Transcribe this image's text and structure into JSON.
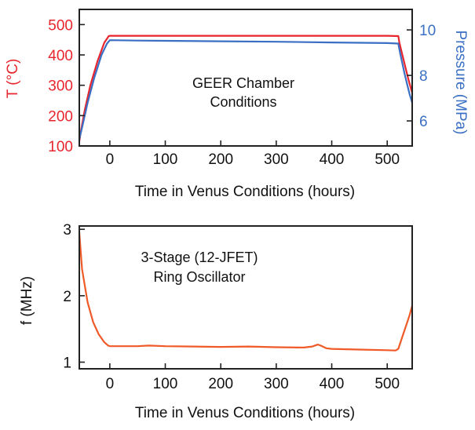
{
  "chart_data": [
    {
      "type": "line",
      "annotation": [
        "GEER Chamber",
        "Conditions"
      ],
      "xlabel": "Time in Venus Conditions (hours)",
      "xlim": [
        -55,
        545
      ],
      "xticks": [
        0,
        100,
        200,
        300,
        400,
        500
      ],
      "ylabel_left": "T (°C)",
      "ylim_left": [
        100,
        550
      ],
      "yticks_left": [
        100,
        200,
        300,
        400,
        500
      ],
      "ylabel_right": "Pressure (MPa)",
      "ylim_right": [
        4.9,
        10.9
      ],
      "yticks_right": [
        6,
        8,
        10
      ],
      "left_color": "#e8242c",
      "right_color": "#3a6fc4",
      "grid": false,
      "series": [
        {
          "axis": "left",
          "color": "#e8242c",
          "points": [
            [
              -55,
              115
            ],
            [
              -52,
              150
            ],
            [
              -45,
              220
            ],
            [
              -35,
              300
            ],
            [
              -22,
              380
            ],
            [
              -10,
              440
            ],
            [
              -2,
              462
            ],
            [
              0,
              463
            ],
            [
              100,
              463
            ],
            [
              200,
              463
            ],
            [
              300,
              463
            ],
            [
              400,
              463
            ],
            [
              500,
              463
            ],
            [
              520,
              462
            ],
            [
              522,
              440
            ],
            [
              530,
              380
            ],
            [
              538,
              320
            ],
            [
              545,
              275
            ]
          ]
        },
        {
          "axis": "right",
          "color": "#3a6fc4",
          "points": [
            [
              -55,
              5.2
            ],
            [
              -50,
              5.7
            ],
            [
              -40,
              6.8
            ],
            [
              -28,
              7.9
            ],
            [
              -15,
              8.9
            ],
            [
              -5,
              9.4
            ],
            [
              0,
              9.55
            ],
            [
              50,
              9.53
            ],
            [
              100,
              9.52
            ],
            [
              200,
              9.5
            ],
            [
              300,
              9.48
            ],
            [
              400,
              9.45
            ],
            [
              500,
              9.42
            ],
            [
              520,
              9.4
            ],
            [
              523,
              9.0
            ],
            [
              532,
              8.0
            ],
            [
              540,
              7.2
            ],
            [
              545,
              6.8
            ]
          ]
        }
      ]
    },
    {
      "type": "line",
      "annotation": [
        "3-Stage (12-JFET)",
        "Ring Oscillator"
      ],
      "xlabel": "Time in Venus Conditions (hours)",
      "xlim": [
        -55,
        545
      ],
      "xticks": [
        0,
        100,
        200,
        300,
        400,
        500
      ],
      "ylabel": "f (MHz)",
      "ylim": [
        0.9,
        3.05
      ],
      "yticks": [
        1,
        2,
        3
      ],
      "grid": false,
      "series": [
        {
          "color": "#f05a28",
          "points": [
            [
              -55,
              2.95
            ],
            [
              -50,
              2.4
            ],
            [
              -40,
              1.9
            ],
            [
              -30,
              1.6
            ],
            [
              -20,
              1.42
            ],
            [
              -10,
              1.3
            ],
            [
              -3,
              1.25
            ],
            [
              0,
              1.24
            ],
            [
              50,
              1.24
            ],
            [
              70,
              1.25
            ],
            [
              100,
              1.24
            ],
            [
              150,
              1.235
            ],
            [
              200,
              1.23
            ],
            [
              250,
              1.235
            ],
            [
              300,
              1.225
            ],
            [
              350,
              1.22
            ],
            [
              365,
              1.235
            ],
            [
              375,
              1.265
            ],
            [
              380,
              1.25
            ],
            [
              390,
              1.21
            ],
            [
              400,
              1.2
            ],
            [
              420,
              1.195
            ],
            [
              450,
              1.19
            ],
            [
              500,
              1.18
            ],
            [
              515,
              1.175
            ],
            [
              520,
              1.2
            ],
            [
              530,
              1.45
            ],
            [
              540,
              1.7
            ],
            [
              545,
              1.85
            ]
          ]
        }
      ]
    }
  ]
}
